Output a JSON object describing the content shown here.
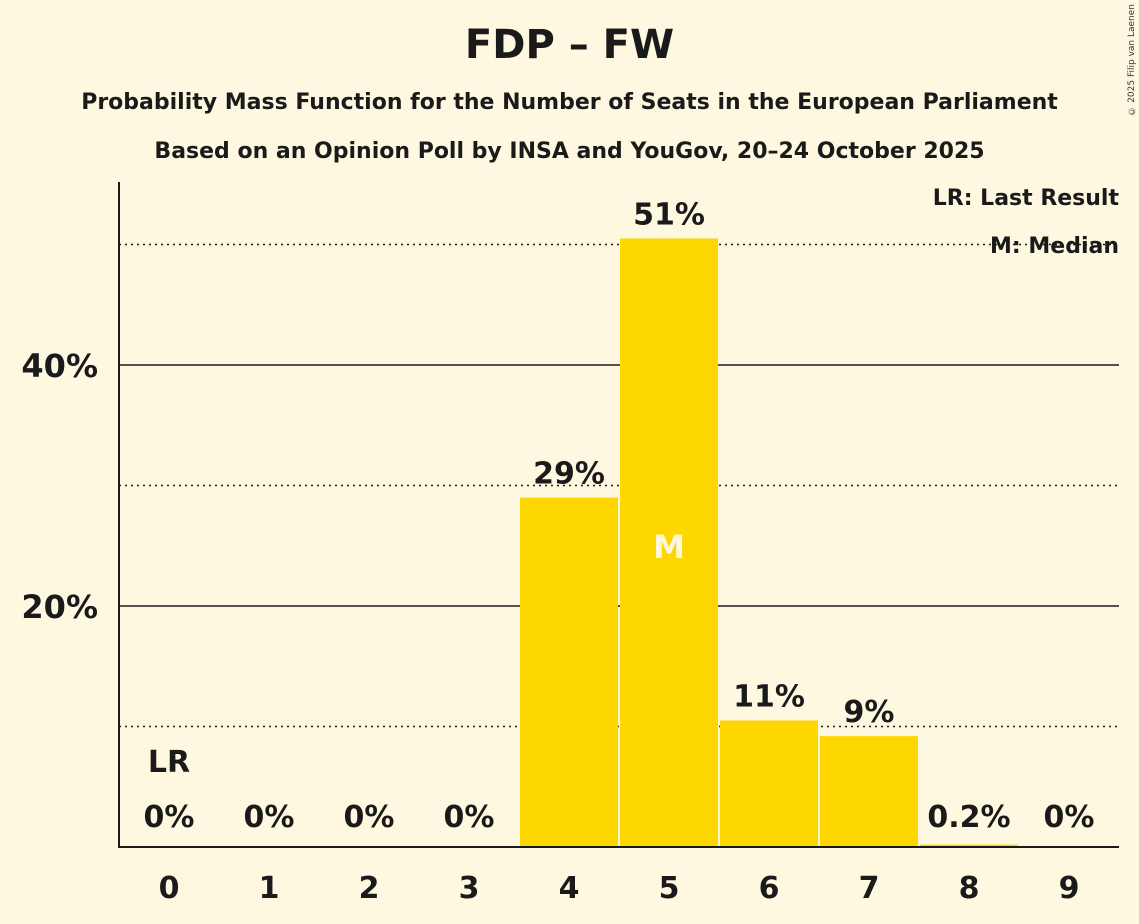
{
  "chart_data": {
    "type": "bar",
    "title": "FDP – FW",
    "subtitle": "Probability Mass Function for the Number of Seats in the European Parliament",
    "subtitle2": "Based on an Opinion Poll by INSA and YouGov, 20–24 October 2025",
    "xlabel": "",
    "ylabel": "",
    "categories": [
      "0",
      "1",
      "2",
      "3",
      "4",
      "5",
      "6",
      "7",
      "8",
      "9"
    ],
    "values": [
      0,
      0,
      0,
      0,
      29.0,
      50.5,
      10.5,
      9.2,
      0.2,
      0
    ],
    "data_labels": [
      "0%",
      "0%",
      "0%",
      "0%",
      "29%",
      "51%",
      "11%",
      "9%",
      "0.2%",
      "0%"
    ],
    "ylim": [
      0,
      55
    ],
    "yticks": [
      20,
      40
    ],
    "ytick_labels": [
      "20%",
      "40%"
    ],
    "minor_gridlines": [
      10,
      30,
      50
    ],
    "grid": true,
    "last_result_index": 0,
    "last_result_label": "LR",
    "median_index": 5,
    "median_label": "M",
    "bar_color": "#ffd700",
    "legend": [
      "LR: Last Result",
      "M: Median"
    ],
    "legend_position": "top-right"
  },
  "copyright": "© 2025 Filip van Laenen"
}
